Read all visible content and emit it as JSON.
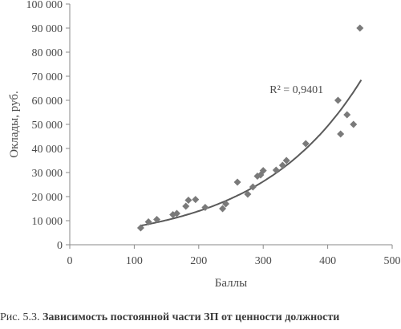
{
  "chart_data": {
    "type": "scatter",
    "xlabel": "Баллы",
    "ylabel": "Оклады, руб.",
    "xlim": [
      0,
      500
    ],
    "ylim": [
      0,
      100000
    ],
    "x_ticks": [
      "0",
      "100",
      "200",
      "300",
      "400",
      "500"
    ],
    "y_ticks": [
      "0",
      "10 000",
      "20 000",
      "30 000",
      "40 000",
      "50 000",
      "60 000",
      "70 000",
      "80 000",
      "90 000",
      "100 000"
    ],
    "x_tick_values": [
      0,
      100,
      200,
      300,
      400,
      500
    ],
    "y_tick_values": [
      0,
      10000,
      20000,
      30000,
      40000,
      50000,
      60000,
      70000,
      80000,
      90000,
      100000
    ],
    "grid": false,
    "marker": "diamond",
    "marker_color": "#7a7a7a",
    "points": [
      {
        "x": 110,
        "y": 7000
      },
      {
        "x": 122,
        "y": 9500
      },
      {
        "x": 135,
        "y": 10500
      },
      {
        "x": 160,
        "y": 12500
      },
      {
        "x": 166,
        "y": 13000
      },
      {
        "x": 180,
        "y": 16000
      },
      {
        "x": 184,
        "y": 18500
      },
      {
        "x": 195,
        "y": 18800
      },
      {
        "x": 210,
        "y": 15500
      },
      {
        "x": 237,
        "y": 15000
      },
      {
        "x": 242,
        "y": 17000
      },
      {
        "x": 260,
        "y": 26000
      },
      {
        "x": 276,
        "y": 21000
      },
      {
        "x": 284,
        "y": 24000
      },
      {
        "x": 291,
        "y": 28500
      },
      {
        "x": 296,
        "y": 29000
      },
      {
        "x": 300,
        "y": 30800
      },
      {
        "x": 320,
        "y": 31000
      },
      {
        "x": 330,
        "y": 33000
      },
      {
        "x": 336,
        "y": 35000
      },
      {
        "x": 366,
        "y": 42000
      },
      {
        "x": 416,
        "y": 60000
      },
      {
        "x": 420,
        "y": 46000
      },
      {
        "x": 430,
        "y": 54000
      },
      {
        "x": 440,
        "y": 50000
      },
      {
        "x": 450,
        "y": 90000
      }
    ],
    "trendline": {
      "type": "exponential",
      "a": 3970,
      "b": 0.0063,
      "x_range": [
        110,
        452
      ],
      "color": "#5a5a5a"
    },
    "annotation": "R² = 0,9401"
  },
  "caption": {
    "lead": "Рис. 5.3. ",
    "text": "Зависимость постоянной части ЗП от ценности должности"
  }
}
